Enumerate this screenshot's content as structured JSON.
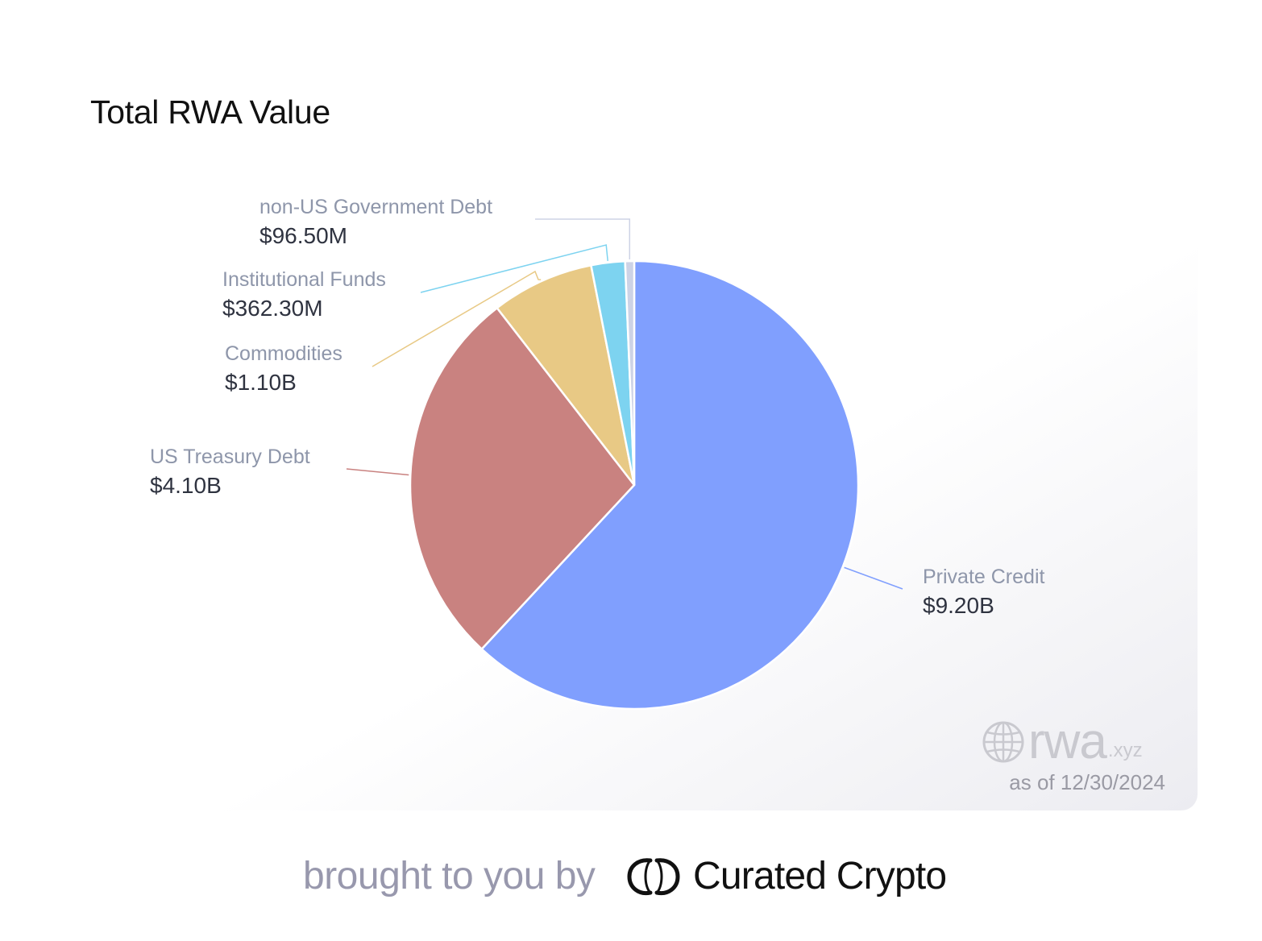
{
  "chart_data": {
    "type": "pie",
    "title": "Total RWA Value",
    "slices": [
      {
        "name": "Private Credit",
        "value": 9.2,
        "display": "$9.20B",
        "color": "#809ffe"
      },
      {
        "name": "US Treasury Debt",
        "value": 4.1,
        "display": "$4.10B",
        "color": "#c98280"
      },
      {
        "name": "Commodities",
        "value": 1.1,
        "display": "$1.10B",
        "color": "#e8c985"
      },
      {
        "name": "Institutional Funds",
        "value": 0.3623,
        "display": "$362.30M",
        "color": "#7dd3f0"
      },
      {
        "name": "non-US Government Debt",
        "value": 0.0965,
        "display": "$96.50M",
        "color": "#cdd3e6"
      }
    ],
    "unit": "billion USD"
  },
  "watermark": {
    "icon": "globe-icon",
    "brand": "rwa",
    "suffix": ".xyz",
    "as_of": "as of 12/30/2024"
  },
  "footer": {
    "text": "brought to you by",
    "brand_icon": "curated-crypto-logo",
    "brand_name": "Curated Crypto"
  }
}
